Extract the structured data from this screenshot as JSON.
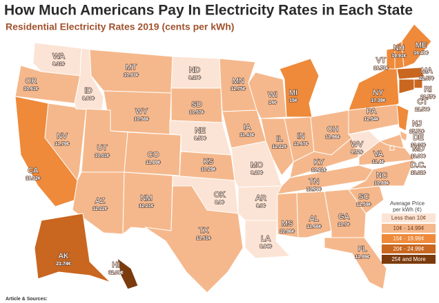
{
  "title": "How Much Americans Pay In Electricity Rates in Each State",
  "subtitle": "Residential Electricity Rates 2019 (cents per kWh)",
  "legend": {
    "title": "Average Price per kWh (¢)",
    "items": [
      {
        "label": "Less than 10¢",
        "color": "#fbe4d5"
      },
      {
        "label": "10¢ - 14.99¢",
        "color": "#f5b88c",
        "min": 10
      },
      {
        "label": "15¢ - 19.99¢",
        "color": "#ee8a3a",
        "min": 15
      },
      {
        "label": "20¢ - 24.99¢",
        "color": "#c9661f",
        "min": 20
      },
      {
        "label": "25¢ and More",
        "color": "#7b3b0d",
        "min": 25
      }
    ]
  },
  "states": [
    {
      "name": "WA",
      "value": 9.31,
      "value_label": "9.31¢"
    },
    {
      "name": "OR",
      "value": 10.61,
      "value_label": "10.61¢"
    },
    {
      "name": "CA",
      "value": 18.32,
      "value_label": "18.32¢"
    },
    {
      "name": "NV",
      "value": 11.79,
      "value_label": "11.79¢"
    },
    {
      "name": "ID",
      "value": 9.83,
      "value_label": "9.83¢"
    },
    {
      "name": "MT",
      "value": 10.93,
      "value_label": "10.93¢"
    },
    {
      "name": "WY",
      "value": 10.56,
      "value_label": "10.56¢"
    },
    {
      "name": "UT",
      "value": 10.01,
      "value_label": "10.01¢"
    },
    {
      "name": "CO",
      "value": 11.89,
      "value_label": "11.89¢"
    },
    {
      "name": "AZ",
      "value": 12.22,
      "value_label": "12.22¢"
    },
    {
      "name": "NM",
      "value": 12.21,
      "value_label": "12.21¢"
    },
    {
      "name": "ND",
      "value": 9.16,
      "value_label": "9.16¢"
    },
    {
      "name": "SD",
      "value": 10.57,
      "value_label": "10.57¢"
    },
    {
      "name": "NE",
      "value": 9.59,
      "value_label": "9.59¢"
    },
    {
      "name": "KS",
      "value": 10.29,
      "value_label": "10.29¢"
    },
    {
      "name": "OK",
      "value": 8.9,
      "value_label": "8.9¢"
    },
    {
      "name": "TX",
      "value": 11.51,
      "value_label": "11.51¢"
    },
    {
      "name": "MN",
      "value": 12.75,
      "value_label": "12.75¢"
    },
    {
      "name": "IA",
      "value": 11.43,
      "value_label": "11.43¢"
    },
    {
      "name": "MO",
      "value": 9.28,
      "value_label": "9.28¢"
    },
    {
      "name": "AR",
      "value": 9.3,
      "value_label": "9.3¢"
    },
    {
      "name": "LA",
      "value": 8.84,
      "value_label": "8.84¢"
    },
    {
      "name": "WI",
      "value": 14,
      "value_label": "14¢"
    },
    {
      "name": "IL",
      "value": 12.22,
      "value_label": "12.22¢"
    },
    {
      "name": "MI",
      "value": 15,
      "value_label": "15¢"
    },
    {
      "name": "IN",
      "value": 11.67,
      "value_label": "11.67¢"
    },
    {
      "name": "OH",
      "value": 11.96,
      "value_label": "11.96¢"
    },
    {
      "name": "KY",
      "value": 10.21,
      "value_label": "10.21¢"
    },
    {
      "name": "TN",
      "value": 10.79,
      "value_label": "10.79¢"
    },
    {
      "name": "MS",
      "value": 10.96,
      "value_label": "10.96¢"
    },
    {
      "name": "AL",
      "value": 11.66,
      "value_label": "11.66¢"
    },
    {
      "name": "GA",
      "value": 10.7,
      "value_label": "10.7¢"
    },
    {
      "name": "FL",
      "value": 11.99,
      "value_label": "11.99¢"
    },
    {
      "name": "SC",
      "value": 11.59,
      "value_label": "11.59¢"
    },
    {
      "name": "NC",
      "value": 10.89,
      "value_label": "10.89¢"
    },
    {
      "name": "VA",
      "value": 11.4,
      "value_label": "11.4¢"
    },
    {
      "name": "WV",
      "value": 9.72,
      "value_label": "9.72¢"
    },
    {
      "name": "PA",
      "value": 12.54,
      "value_label": "12.54¢"
    },
    {
      "name": "NY",
      "value": 17.39,
      "value_label": "17.39¢"
    },
    {
      "name": "VT",
      "value": 16.73,
      "value_label": "16.73¢"
    },
    {
      "name": "NH",
      "value": 19.91,
      "value_label": "19.91¢"
    },
    {
      "name": "ME",
      "value": 16.49,
      "value_label": "16.49¢"
    },
    {
      "name": "MA",
      "value": 22.57,
      "value_label": "22.57¢"
    },
    {
      "name": "RI",
      "value": 22.57,
      "value_label": "22.57¢"
    },
    {
      "name": "CT",
      "value": 21.56,
      "value_label": "21.56¢"
    },
    {
      "name": "NJ",
      "value": 15.72,
      "value_label": "15.72¢"
    },
    {
      "name": "DE",
      "value": 12.34,
      "value_label": "12.34¢"
    },
    {
      "name": "MD",
      "value": 13.08,
      "value_label": "13.08¢"
    },
    {
      "name": "D.C.",
      "value": 13.02,
      "value_label": "13.02¢"
    },
    {
      "name": "AK",
      "value": 21.74,
      "value_label": "21.74¢"
    },
    {
      "name": "HI",
      "value": 32.09,
      "value_label": "32.09¢"
    }
  ],
  "footer": "Article & Sources:"
}
